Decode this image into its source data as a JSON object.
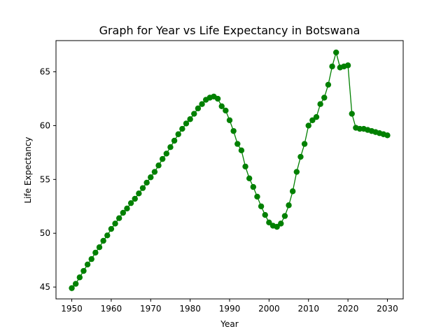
{
  "chart_data": {
    "type": "line",
    "title": "Graph for Year vs Life Expectancy in Botswana",
    "xlabel": "Year",
    "ylabel": "Life Expectancy",
    "xlim": [
      1946,
      2034
    ],
    "ylim": [
      43.9,
      67.9
    ],
    "xticks": [
      1950,
      1960,
      1970,
      1980,
      1990,
      2000,
      2010,
      2020,
      2030
    ],
    "yticks": [
      45,
      50,
      55,
      60,
      65
    ],
    "grid": false,
    "color": "#008000",
    "marker": "circle",
    "series": [
      {
        "x": [
          1950,
          1951,
          1952,
          1953,
          1954,
          1955,
          1956,
          1957,
          1958,
          1959,
          1960,
          1961,
          1962,
          1963,
          1964,
          1965,
          1966,
          1967,
          1968,
          1969,
          1970,
          1971,
          1972,
          1973,
          1974,
          1975,
          1976,
          1977,
          1978,
          1979,
          1980,
          1981,
          1982,
          1983,
          1984,
          1985,
          1986,
          1987,
          1988,
          1989,
          1990,
          1991,
          1992,
          1993,
          1994,
          1995,
          1996,
          1997,
          1998,
          1999,
          2000,
          2001,
          2002,
          2003,
          2004,
          2005,
          2006,
          2007,
          2008,
          2009,
          2010,
          2011,
          2012,
          2013,
          2014,
          2015,
          2016,
          2017,
          2018,
          2019,
          2020,
          2021,
          2022,
          2023,
          2024,
          2025,
          2026,
          2027,
          2028,
          2029,
          2030
        ],
        "y": [
          44.9,
          45.3,
          45.9,
          46.5,
          47.1,
          47.6,
          48.2,
          48.7,
          49.3,
          49.8,
          50.4,
          50.9,
          51.4,
          51.9,
          52.3,
          52.8,
          53.2,
          53.7,
          54.2,
          54.7,
          55.2,
          55.7,
          56.3,
          56.9,
          57.4,
          58.0,
          58.6,
          59.2,
          59.7,
          60.2,
          60.6,
          61.1,
          61.6,
          62.0,
          62.4,
          62.6,
          62.7,
          62.5,
          61.8,
          61.4,
          60.5,
          59.5,
          58.3,
          57.7,
          56.2,
          55.1,
          54.3,
          53.4,
          52.5,
          51.7,
          51.0,
          50.7,
          50.6,
          50.9,
          51.6,
          52.6,
          53.9,
          55.7,
          57.1,
          58.3,
          60.0,
          60.5,
          60.8,
          62.0,
          62.6,
          63.8,
          65.5,
          66.8,
          65.4,
          65.5,
          65.6,
          61.1,
          59.8,
          59.7,
          59.7,
          59.6,
          59.5,
          59.4,
          59.3,
          59.2,
          59.1
        ]
      }
    ]
  }
}
